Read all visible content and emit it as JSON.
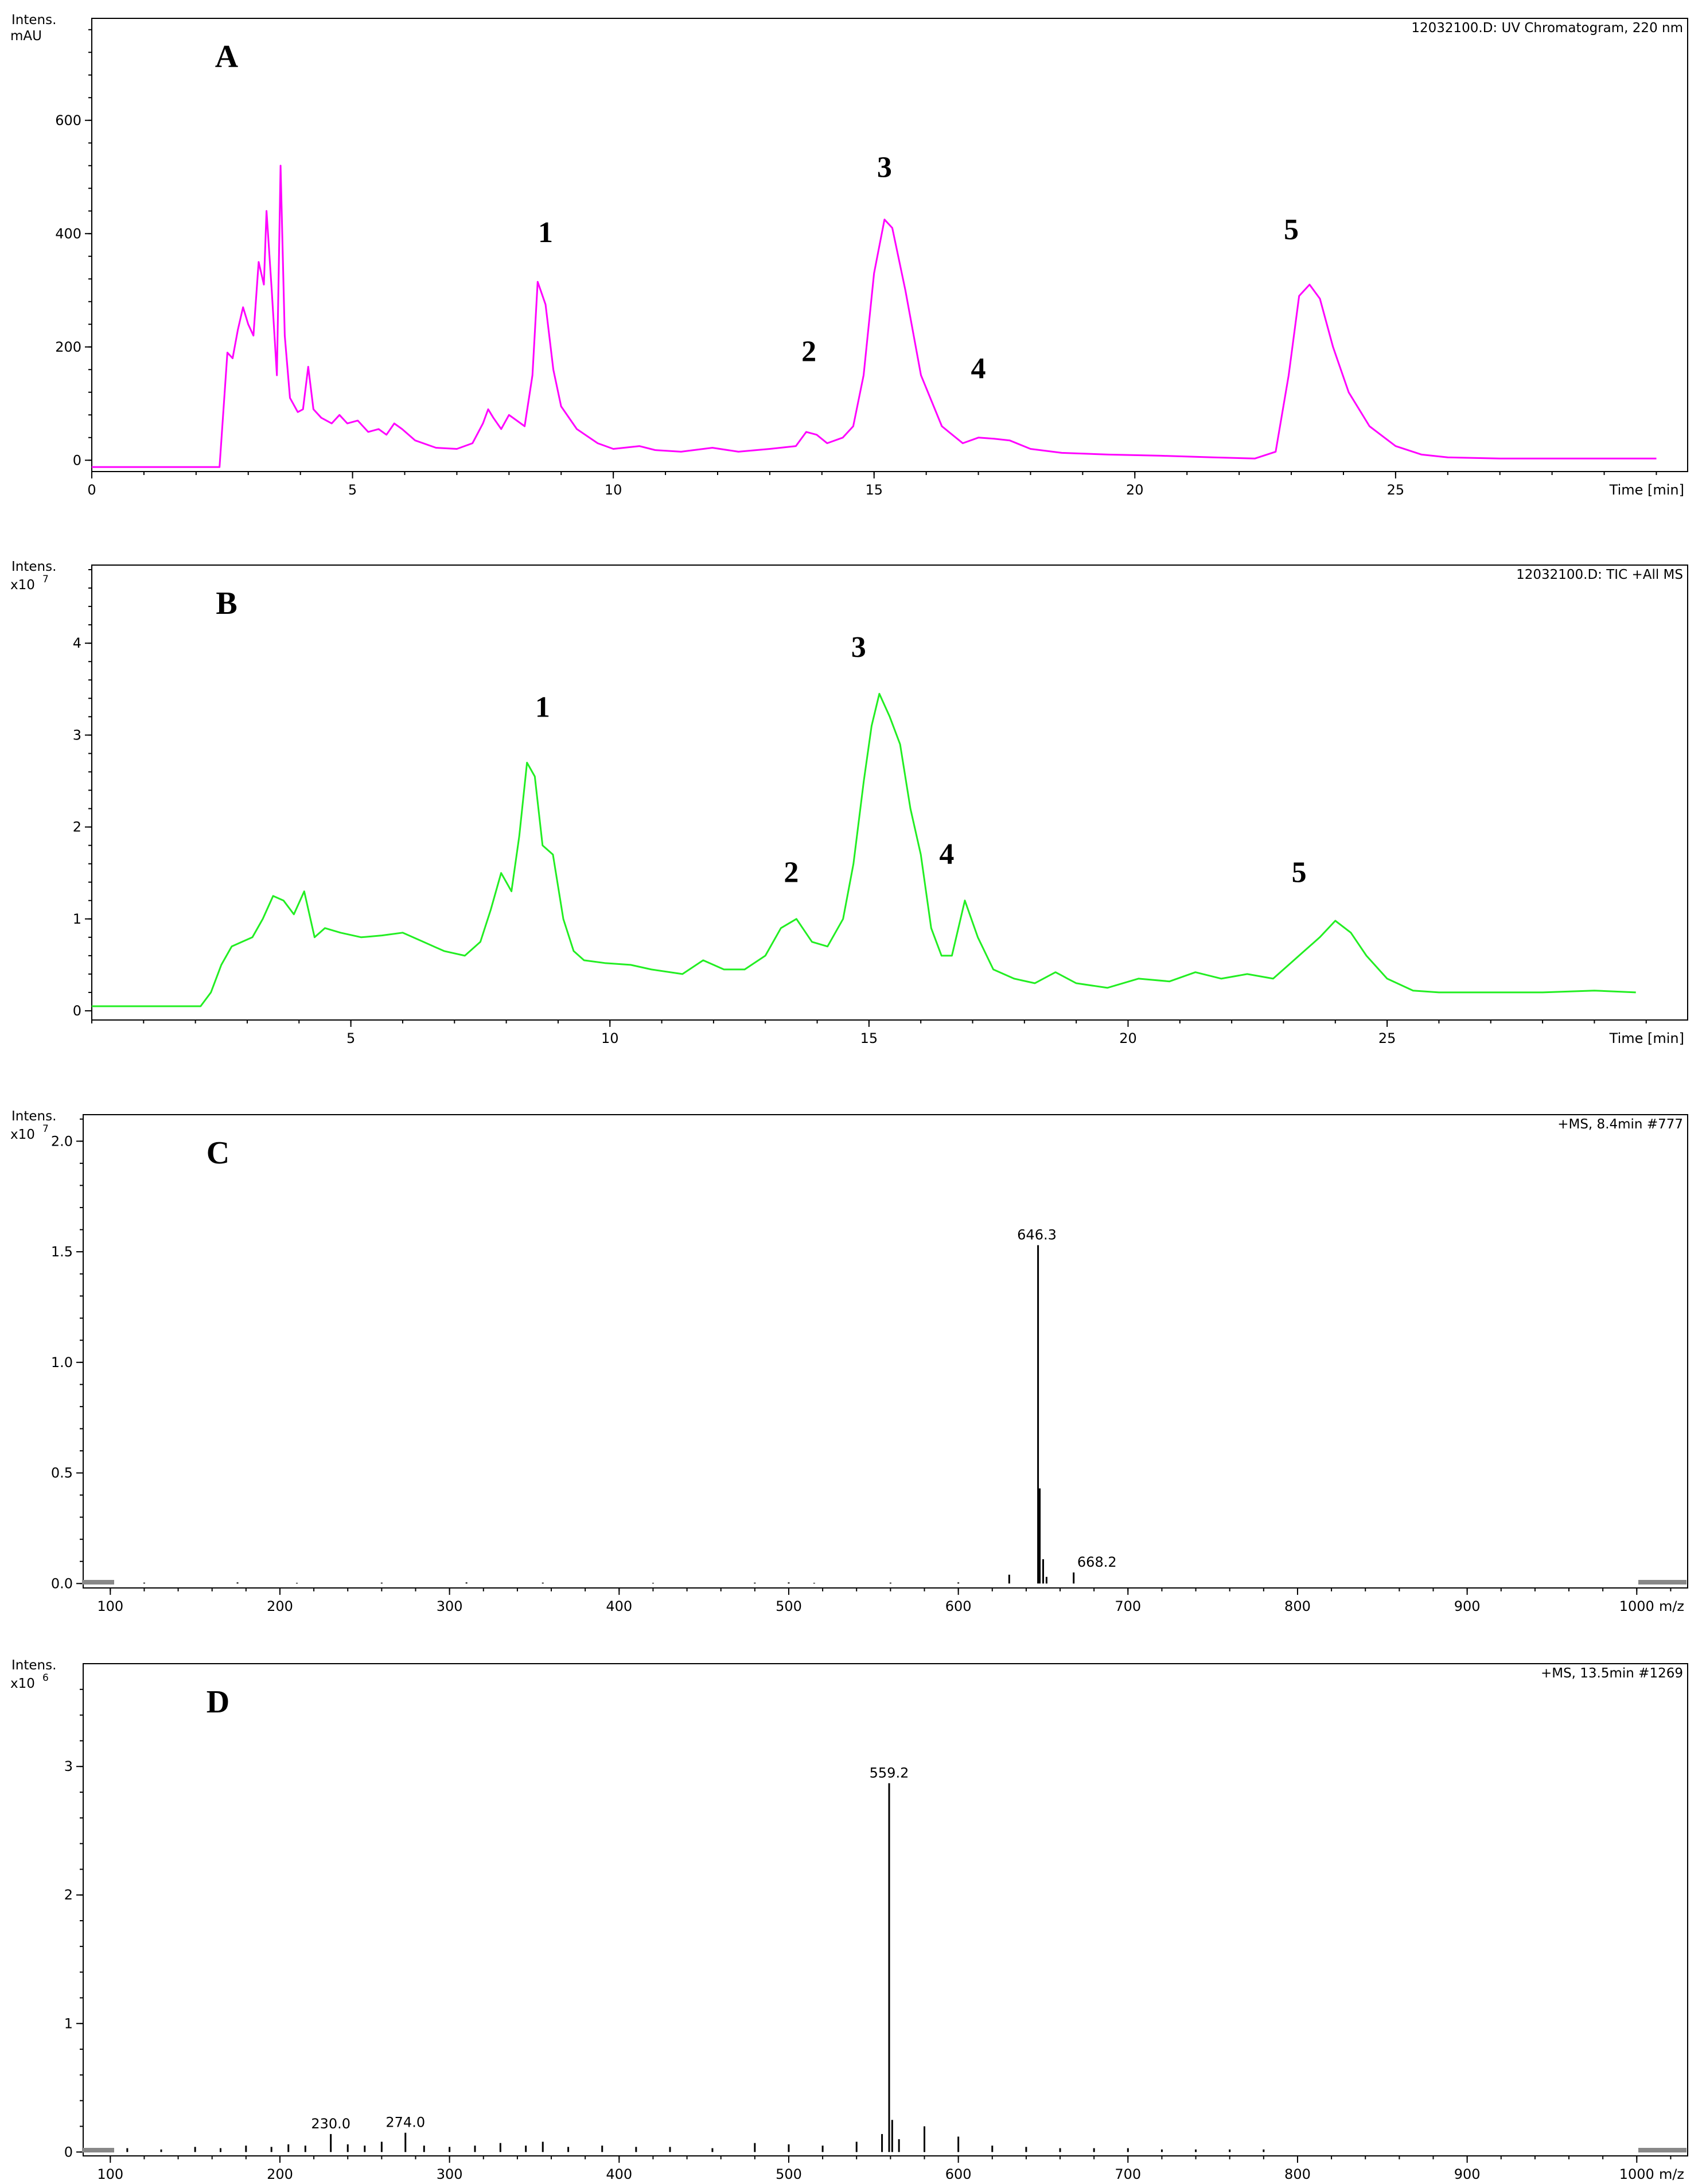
{
  "chart_data": [
    {
      "type": "line",
      "panel_label": "A",
      "info_text": "12032100.D: UV Chromatogram, 220 nm",
      "ytitle": [
        "Intens.",
        "mAU"
      ],
      "xlabel": "Time [min]",
      "xlim": [
        0,
        30.6
      ],
      "ylim": [
        -20,
        780
      ],
      "xticks": [
        0,
        5,
        10,
        15,
        20,
        25
      ],
      "yticks": [
        0,
        200,
        400,
        600
      ],
      "color": "#ff00ff",
      "peaks": [
        {
          "label": "1",
          "x": 8.7,
          "y": 385
        },
        {
          "label": "2",
          "x": 13.75,
          "y": 175
        },
        {
          "label": "3",
          "x": 15.2,
          "y": 500
        },
        {
          "label": "4",
          "x": 17.0,
          "y": 145
        },
        {
          "label": "5",
          "x": 23.0,
          "y": 390
        }
      ],
      "series": [
        {
          "x": [
            0,
            2.3,
            2.45,
            2.6,
            2.7,
            2.8,
            2.9,
            3.0,
            3.1,
            3.2,
            3.3,
            3.35,
            3.45,
            3.55,
            3.62,
            3.7,
            3.8,
            3.95,
            4.05,
            4.15,
            4.25,
            4.4,
            4.6,
            4.75,
            4.9,
            5.1,
            5.3,
            5.5,
            5.65,
            5.8,
            5.95,
            6.2,
            6.6,
            7.0,
            7.3,
            7.5,
            7.6,
            7.7,
            7.85,
            8.0,
            8.15,
            8.3,
            8.45,
            8.55,
            8.7,
            8.85,
            9.0,
            9.3,
            9.7,
            10.0,
            10.5,
            10.8,
            11.3,
            11.9,
            12.4,
            13.0,
            13.5,
            13.7,
            13.9,
            14.1,
            14.4,
            14.6,
            14.8,
            15.0,
            15.2,
            15.35,
            15.6,
            15.9,
            16.3,
            16.7,
            17.0,
            17.3,
            17.6,
            18.0,
            18.6,
            19.5,
            20.5,
            21.5,
            22.3,
            22.7,
            22.95,
            23.15,
            23.35,
            23.55,
            23.8,
            24.1,
            24.5,
            25.0,
            25.5,
            26.0,
            27.0,
            28.0,
            29.0,
            30.0
          ],
          "y": [
            -12,
            -12,
            -12,
            190,
            180,
            230,
            270,
            240,
            220,
            350,
            310,
            440,
            300,
            150,
            520,
            220,
            110,
            85,
            90,
            165,
            90,
            75,
            65,
            80,
            65,
            70,
            50,
            55,
            45,
            65,
            55,
            35,
            22,
            20,
            30,
            65,
            90,
            75,
            55,
            80,
            70,
            60,
            150,
            315,
            275,
            160,
            95,
            55,
            30,
            20,
            25,
            18,
            15,
            22,
            15,
            20,
            25,
            50,
            45,
            30,
            40,
            60,
            150,
            330,
            425,
            410,
            300,
            150,
            60,
            30,
            40,
            38,
            35,
            20,
            13,
            10,
            8,
            5,
            3,
            15,
            150,
            290,
            310,
            285,
            200,
            120,
            60,
            25,
            10,
            5,
            3,
            3,
            3,
            3
          ]
        }
      ]
    },
    {
      "type": "line",
      "panel_label": "B",
      "info_text": "12032100.D: TIC +All MS",
      "ytitle": [
        "Intens.",
        "x10",
        "7"
      ],
      "xlabel": "Time [min]",
      "xlim": [
        0,
        30.8
      ],
      "ylim": [
        -0.1,
        4.85
      ],
      "xticks": [
        5,
        10,
        15,
        20,
        25
      ],
      "yticks": [
        0,
        1,
        2,
        3,
        4
      ],
      "color": "#22ee22",
      "peaks": [
        {
          "label": "1",
          "x": 8.7,
          "y": 3.2
        },
        {
          "label": "2",
          "x": 13.5,
          "y": 1.4
        },
        {
          "label": "3",
          "x": 14.8,
          "y": 3.85
        },
        {
          "label": "4",
          "x": 16.5,
          "y": 1.6
        },
        {
          "label": "5",
          "x": 23.3,
          "y": 1.4
        }
      ],
      "series": [
        {
          "x": [
            0,
            2.1,
            2.3,
            2.5,
            2.7,
            2.9,
            3.1,
            3.3,
            3.5,
            3.7,
            3.9,
            4.1,
            4.3,
            4.5,
            4.8,
            5.2,
            5.6,
            6.0,
            6.4,
            6.8,
            7.2,
            7.5,
            7.7,
            7.9,
            8.1,
            8.25,
            8.4,
            8.55,
            8.7,
            8.9,
            9.1,
            9.3,
            9.5,
            9.9,
            10.4,
            10.8,
            11.4,
            11.8,
            12.2,
            12.6,
            13.0,
            13.3,
            13.6,
            13.9,
            14.2,
            14.5,
            14.7,
            14.9,
            15.05,
            15.2,
            15.4,
            15.6,
            15.8,
            16.0,
            16.2,
            16.4,
            16.6,
            16.85,
            17.1,
            17.4,
            17.8,
            18.2,
            18.6,
            19.0,
            19.6,
            20.2,
            20.8,
            21.3,
            21.8,
            22.3,
            22.8,
            23.1,
            23.4,
            23.7,
            24.0,
            24.3,
            24.6,
            25.0,
            25.5,
            26.0,
            27.0,
            28.0,
            29.0,
            29.8
          ],
          "y": [
            0.05,
            0.05,
            0.2,
            0.5,
            0.7,
            0.75,
            0.8,
            1.0,
            1.25,
            1.2,
            1.05,
            1.3,
            0.8,
            0.9,
            0.85,
            0.8,
            0.82,
            0.85,
            0.75,
            0.65,
            0.6,
            0.75,
            1.1,
            1.5,
            1.3,
            1.9,
            2.7,
            2.55,
            1.8,
            1.7,
            1.0,
            0.65,
            0.55,
            0.52,
            0.5,
            0.45,
            0.4,
            0.55,
            0.45,
            0.45,
            0.6,
            0.9,
            1.0,
            0.75,
            0.7,
            1.0,
            1.6,
            2.5,
            3.1,
            3.45,
            3.2,
            2.9,
            2.2,
            1.7,
            0.9,
            0.6,
            0.6,
            1.2,
            0.8,
            0.45,
            0.35,
            0.3,
            0.42,
            0.3,
            0.25,
            0.35,
            0.32,
            0.42,
            0.35,
            0.4,
            0.35,
            0.5,
            0.65,
            0.8,
            0.98,
            0.85,
            0.6,
            0.35,
            0.22,
            0.2,
            0.2,
            0.2,
            0.22,
            0.2
          ]
        }
      ]
    },
    {
      "type": "bar",
      "panel_label": "C",
      "info_text": "+MS, 8.4min #777",
      "ytitle": [
        "Intens.",
        "x10",
        "7"
      ],
      "xlabel": "m/z",
      "xlim": [
        84,
        1030
      ],
      "ylim": [
        -0.02,
        2.12
      ],
      "xticks": [
        100,
        200,
        300,
        400,
        500,
        600,
        700,
        800,
        900,
        1000
      ],
      "xtick_labels": [
        "100",
        "200",
        "300",
        "400",
        "500",
        "600",
        "700",
        "800",
        "900",
        "1000"
      ],
      "yticks": [
        0.0,
        0.5,
        1.0,
        1.5,
        2.0
      ],
      "ytick_labels": [
        "0.0",
        "0.5",
        "1.0",
        "1.5",
        "2.0"
      ],
      "color": "#000000",
      "peak_labels": [
        {
          "x": 646.3,
          "y": 1.53,
          "text": "646.3"
        },
        {
          "x": 668.2,
          "y": 0.05,
          "text": "668.2"
        }
      ],
      "x": [
        120,
        175,
        210,
        260,
        310,
        355,
        420,
        480,
        500,
        515,
        560,
        600,
        630,
        647,
        648,
        650,
        652,
        668
      ],
      "values": [
        0.004,
        0.005,
        0.003,
        0.004,
        0.005,
        0.004,
        0.003,
        0.004,
        0.005,
        0.003,
        0.004,
        0.005,
        0.04,
        1.53,
        0.43,
        0.11,
        0.03,
        0.05
      ]
    },
    {
      "type": "bar",
      "panel_label": "D",
      "info_text": "+MS, 13.5min #1269",
      "ytitle": [
        "Intens.",
        "x10",
        "6"
      ],
      "xlabel": "m/z",
      "xlim": [
        84,
        1030
      ],
      "ylim": [
        -0.03,
        3.8
      ],
      "xticks": [
        100,
        200,
        300,
        400,
        500,
        600,
        700,
        800,
        900,
        1000
      ],
      "xtick_labels": [
        "100",
        "200",
        "300",
        "400",
        "500",
        "600",
        "700",
        "800",
        "900",
        "1000"
      ],
      "yticks": [
        0,
        1,
        2,
        3
      ],
      "color": "#000000",
      "peak_labels": [
        {
          "x": 559.2,
          "y": 2.87,
          "text": "559.2"
        },
        {
          "x": 230.0,
          "y": 0.14,
          "text": "230.0"
        },
        {
          "x": 274.0,
          "y": 0.15,
          "text": "274.0"
        }
      ],
      "x": [
        110,
        130,
        150,
        165,
        180,
        195,
        205,
        215,
        230,
        240,
        250,
        260,
        274,
        285,
        300,
        315,
        330,
        345,
        355,
        370,
        390,
        410,
        430,
        455,
        480,
        500,
        520,
        540,
        555,
        559.2,
        561,
        565,
        580,
        600,
        620,
        640,
        660,
        680,
        700,
        720,
        740,
        760,
        780
      ],
      "values": [
        0.03,
        0.02,
        0.04,
        0.03,
        0.05,
        0.04,
        0.06,
        0.05,
        0.14,
        0.06,
        0.05,
        0.08,
        0.15,
        0.05,
        0.04,
        0.05,
        0.07,
        0.05,
        0.08,
        0.04,
        0.05,
        0.04,
        0.04,
        0.03,
        0.07,
        0.06,
        0.05,
        0.08,
        0.14,
        2.87,
        0.25,
        0.1,
        0.2,
        0.12,
        0.05,
        0.04,
        0.03,
        0.03,
        0.03,
        0.02,
        0.02,
        0.02,
        0.02
      ]
    }
  ]
}
